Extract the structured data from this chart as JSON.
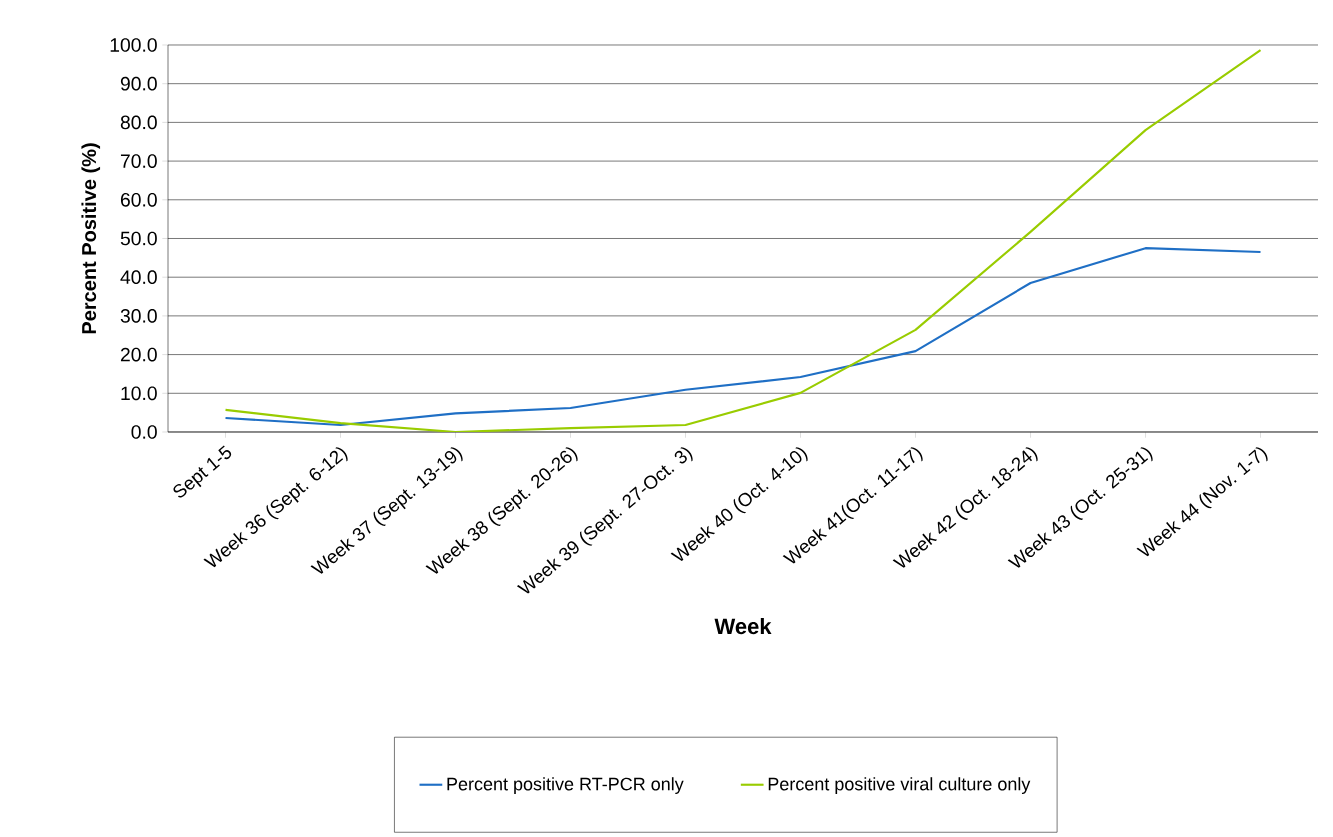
{
  "chart_data": {
    "type": "line",
    "xlabel": "Week",
    "ylabel": "Percent Positive (%)",
    "categories": [
      "Sept 1-5",
      "Week 36 (Sept. 6-12)",
      "Week 37 (Sept. 13-19)",
      "Week 38 (Sept. 20-26)",
      "Week 39 (Sept. 27-Oct. 3)",
      "Week 40 (Oct. 4-10)",
      "Week 41(Oct. 11-17)",
      "Week 42 (Oct. 18-24)",
      "Week 43 (Oct. 25-31)",
      "Week 44 (Nov. 1-7)"
    ],
    "series": [
      {
        "name": "Percent positive RT-PCR only",
        "color": "#1f6fc5",
        "values": [
          3.6,
          1.8,
          4.8,
          6.2,
          10.9,
          14.2,
          20.9,
          38.5,
          47.5,
          46.5
        ]
      },
      {
        "name": "Percent positive viral culture only",
        "color": "#99cc00",
        "values": [
          5.7,
          2.3,
          0.0,
          1.0,
          1.8,
          10.1,
          26.4,
          51.7,
          78.0,
          98.7
        ]
      }
    ],
    "ylim": [
      0,
      100
    ],
    "yticks": [
      {
        "value": 0,
        "label": "0.0"
      },
      {
        "value": 10,
        "label": "10.0"
      },
      {
        "value": 20,
        "label": "20.0"
      },
      {
        "value": 30,
        "label": "30.0"
      },
      {
        "value": 40,
        "label": "40.0"
      },
      {
        "value": 50,
        "label": "50.0"
      },
      {
        "value": 60,
        "label": "60.0"
      },
      {
        "value": 70,
        "label": "70.0"
      },
      {
        "value": 80,
        "label": "80.0"
      },
      {
        "value": 90,
        "label": "90.0"
      },
      {
        "value": 100,
        "label": "100.0"
      }
    ],
    "grid": "y",
    "legend": "bottom",
    "marker": "none",
    "line_style": "solid"
  }
}
